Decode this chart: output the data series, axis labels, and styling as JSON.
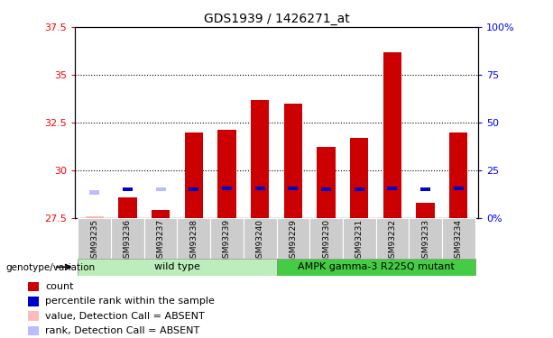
{
  "title": "GDS1939 / 1426271_at",
  "samples": [
    "GSM93235",
    "GSM93236",
    "GSM93237",
    "GSM93238",
    "GSM93239",
    "GSM93240",
    "GSM93229",
    "GSM93230",
    "GSM93231",
    "GSM93232",
    "GSM93233",
    "GSM93234"
  ],
  "red_values": [
    27.6,
    28.6,
    27.9,
    32.0,
    32.1,
    33.7,
    33.5,
    31.2,
    31.7,
    36.2,
    28.3,
    32.0
  ],
  "blue_values": [
    28.85,
    29.0,
    29.0,
    29.0,
    29.05,
    29.05,
    29.05,
    29.0,
    29.0,
    29.05,
    29.0,
    29.05
  ],
  "absent_red": [
    true,
    false,
    false,
    false,
    false,
    false,
    false,
    false,
    false,
    false,
    false,
    false
  ],
  "absent_blue": [
    true,
    false,
    true,
    false,
    false,
    false,
    false,
    false,
    false,
    false,
    false,
    false
  ],
  "ylim_left": [
    27.5,
    37.5
  ],
  "ylim_right": [
    0,
    100
  ],
  "yticks_left": [
    27.5,
    30.0,
    32.5,
    35.0,
    37.5
  ],
  "yticks_right": [
    0,
    25,
    50,
    75,
    100
  ],
  "ytick_labels_left": [
    "27.5",
    "30",
    "32.5",
    "35",
    "37.5"
  ],
  "ytick_labels_right": [
    "0%",
    "25",
    "50",
    "75",
    "100%"
  ],
  "grid_values": [
    30.0,
    32.5,
    35.0
  ],
  "group1_label": "wild type",
  "group2_label": "AMPK gamma-3 R225Q mutant",
  "group1_count": 6,
  "group2_count": 6,
  "genotype_label": "genotype/variation",
  "legend_items": [
    {
      "label": "count",
      "color": "#cc0000"
    },
    {
      "label": "percentile rank within the sample",
      "color": "#0000cc"
    },
    {
      "label": "value, Detection Call = ABSENT",
      "color": "#ffbbbb"
    },
    {
      "label": "rank, Detection Call = ABSENT",
      "color": "#bbbbff"
    }
  ],
  "bar_width": 0.55,
  "left_color": "#cc0000",
  "blue_color": "#0000cc",
  "absent_red_color": "#ffbbbb",
  "absent_blue_color": "#bbbbff",
  "group1_bg": "#bbeebb",
  "group2_bg": "#44cc44",
  "baseline": 27.5
}
